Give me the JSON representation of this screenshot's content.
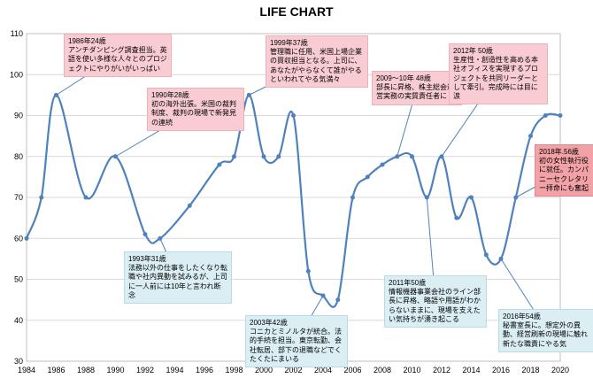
{
  "title": "LIFE CHART",
  "chart_data": {
    "type": "line",
    "title": "LIFE CHART",
    "x": [
      1984,
      1985,
      1986,
      1988,
      1990,
      1992,
      1993,
      1995,
      1997,
      1998,
      1999,
      2000,
      2001,
      2002,
      2003,
      2004,
      2005,
      2006,
      2007,
      2008,
      2009,
      2010,
      2011,
      2012,
      2013,
      2014,
      2015,
      2016,
      2017,
      2018,
      2019,
      2020
    ],
    "values": [
      60,
      70,
      95,
      70,
      80,
      61,
      60,
      68,
      78,
      80,
      95,
      80,
      80,
      90,
      52,
      46,
      45,
      70,
      75,
      78,
      80,
      80,
      70,
      80,
      65,
      70,
      56,
      55,
      70,
      85,
      90,
      90
    ],
    "xticks": [
      1984,
      1986,
      1988,
      1990,
      1992,
      1994,
      1996,
      1998,
      2000,
      2002,
      2004,
      2006,
      2008,
      2010,
      2012,
      2014,
      2016,
      2018,
      2020
    ],
    "ylim": [
      30,
      110
    ],
    "ytick_step": 10,
    "grid": true,
    "legend": "none",
    "line_color": "#4f81bd",
    "marker_color": "#4f81bd"
  },
  "colors": {
    "line": "#4f81bd",
    "grid": "#d9d9d9",
    "plot_border": "#bfbfbf",
    "pink_box": "#f8ccd2",
    "blue_box": "#daeef3",
    "red_box": "#f2a1a7"
  },
  "annotations": [
    {
      "kind": "pink",
      "anchor_year": 1986,
      "anchor_value": 95,
      "text": "1986年24歳\nアンチダンピング調査担当。英語を使い多様な人々とのプロジェクトにやりがいがいっぱい"
    },
    {
      "kind": "pink",
      "anchor_year": 1990,
      "anchor_value": 80,
      "text": "1990年28歳\n初の海外出張。米国の裁判制度、裁判の現場で新発見の連続"
    },
    {
      "kind": "pink",
      "anchor_year": 1999,
      "anchor_value": 95,
      "text": "1999年37歳\n管理職に任用、米国上場企業の買収担当となる。上司に、あなたがやらなくて誰がやるといわれてやる気満々"
    },
    {
      "kind": "pink",
      "anchor_year": 2009,
      "anchor_value": 80,
      "text": "2009〜10年 48歳\n部長に昇格、株主総会運営実務の実質責任者に"
    },
    {
      "kind": "pink",
      "anchor_year": 2012,
      "anchor_value": 80,
      "text": "2012年 50歳\n生産性・創造性を高める本社オフィスを実現するプロジェクトを共同リーダーとして牽引。完成時には目に涙"
    },
    {
      "kind": "red",
      "anchor_year": 2017,
      "anchor_value": 70,
      "text": "2018年.56歳\n初の女性執行役に就任。カンパニーセクレタリー拝命にも奮起"
    },
    {
      "kind": "blue",
      "anchor_year": 1993,
      "anchor_value": 60,
      "text": "1993年31歳\n法務以外の仕事をしたくなり転職や社内異動を試みるが、上司に一人前には10年と言われ断念"
    },
    {
      "kind": "blue",
      "anchor_year": 2004,
      "anchor_value": 46,
      "text": "2003年42歳\nコニカとミノルタが統合。法的手続を担当。東京転勤、会社転居、部下の退職などでくたくたにまいる"
    },
    {
      "kind": "blue",
      "anchor_year": 2011,
      "anchor_value": 70,
      "text": "2011年50歳\n情報機器事業会社のライン部長に昇格、略語や用語がわからないままに、現場を支えたい気持ちが湧き起こる"
    },
    {
      "kind": "blue",
      "anchor_year": 2016,
      "anchor_value": 55,
      "text": "2016年54歳\n秘書室長に。想定外の異動、経営刷新の現場に触れ新たな職責にやる気"
    }
  ]
}
